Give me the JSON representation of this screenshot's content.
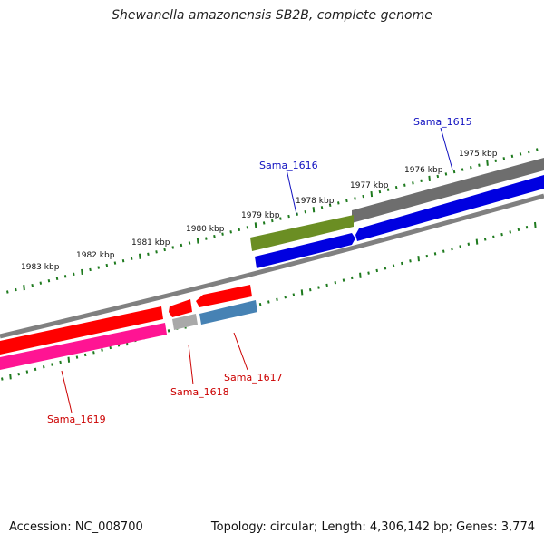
{
  "title": "Shewanella amazonensis SB2B, complete genome",
  "footer": {
    "accession": "Accession: NC_008700",
    "stats": "Topology: circular; Length: 4,306,142 bp; Genes: 3,774"
  },
  "ruler": {
    "labels": [
      "1983 kbp",
      "1982 kbp",
      "1981 kbp",
      "1980 kbp",
      "1979 kbp",
      "1978 kbp",
      "1977 kbp",
      "1976 kbp",
      "1975 kbp"
    ],
    "tick_color": "#1e7a1e"
  },
  "genes": [
    {
      "name": "Sama_1615",
      "color": "#0000e0",
      "label_color": "#1010c0"
    },
    {
      "name": "Sama_1616",
      "color": "#0000e0",
      "label_color": "#1010c0"
    },
    {
      "name": "Sama_1617",
      "color": "#ff0000",
      "label_color": "#cc0000"
    },
    {
      "name": "Sama_1618",
      "color": "#ff0000",
      "label_color": "#cc0000"
    },
    {
      "name": "Sama_1619",
      "color": "#ff0000",
      "label_color": "#cc0000"
    }
  ],
  "feature_colors": {
    "backbone": "#808080",
    "dark_gray": "#666666",
    "olive": "#6b8e23",
    "blue": "#0000e0",
    "red": "#ff0000",
    "pink": "#ff1493",
    "light_gray": "#a9a9a9",
    "steel_blue": "#4682b4"
  }
}
